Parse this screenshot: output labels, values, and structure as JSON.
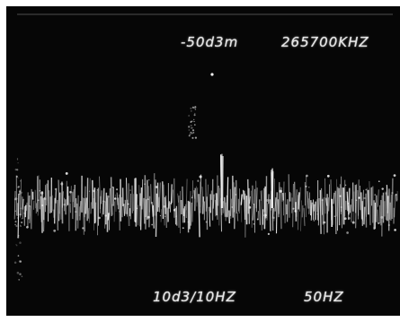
{
  "display": {
    "reference_level": "-50d3m",
    "center_frequency": "265700KHZ",
    "vertical_scale": "10d3/10HZ",
    "span": "50HZ"
  },
  "colors": {
    "screen_background": "#060606",
    "trace": "#f2f2f2",
    "frame": "#ffffff"
  }
}
